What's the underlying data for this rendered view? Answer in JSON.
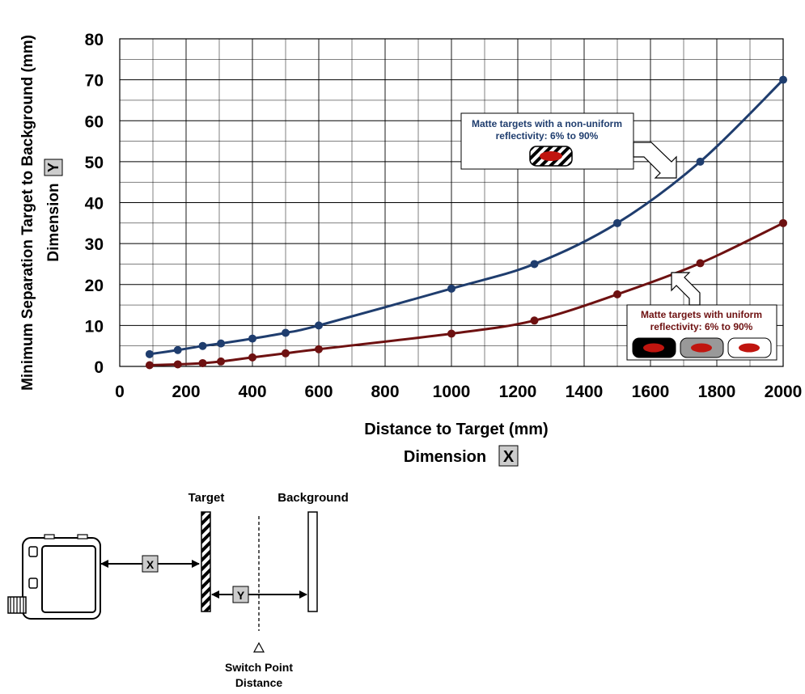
{
  "chart_data": {
    "type": "line",
    "xlabel": "Distance to Target (mm)",
    "xlabel_dimension": "Dimension",
    "xlabel_badge": "X",
    "ylabel": "Minimum Separation Target to Background (mm)",
    "ylabel_dimension": "Dimension",
    "ylabel_badge": "Y",
    "xlim": [
      0,
      2000
    ],
    "ylim": [
      0,
      80
    ],
    "xticks": [
      0,
      200,
      400,
      600,
      800,
      1000,
      1200,
      1400,
      1600,
      1800,
      2000
    ],
    "yticks": [
      0,
      10,
      20,
      30,
      40,
      50,
      60,
      70,
      80
    ],
    "grid": true,
    "series": [
      {
        "color": "#1f3d6e",
        "x": [
          90,
          175,
          250,
          305,
          400,
          500,
          600,
          1000,
          1250,
          1500,
          1750,
          2000
        ],
        "y": [
          3,
          4,
          5,
          5.6,
          6.8,
          8.2,
          10,
          19,
          25,
          35,
          50,
          70
        ]
      },
      {
        "color": "#6e1111",
        "x": [
          90,
          175,
          250,
          305,
          400,
          500,
          600,
          1000,
          1250,
          1500,
          1750,
          2000
        ],
        "y": [
          0.3,
          0.5,
          0.8,
          1.2,
          2.2,
          3.2,
          4.2,
          8,
          11.2,
          17.6,
          25.2,
          35
        ]
      }
    ],
    "annotations": [
      {
        "line1": "Matte targets with a non-uniform",
        "line2": "reflectivity: 6% to 90%",
        "color": "#1f3d6e"
      },
      {
        "line1": "Matte targets with uniform",
        "line2": "reflectivity: 6% to 90%",
        "color": "#6e1111"
      }
    ]
  },
  "diagram": {
    "target_label": "Target",
    "background_label": "Background",
    "x_badge": "X",
    "y_badge": "Y",
    "switch_line1": "Switch Point",
    "switch_line2": "Distance"
  }
}
